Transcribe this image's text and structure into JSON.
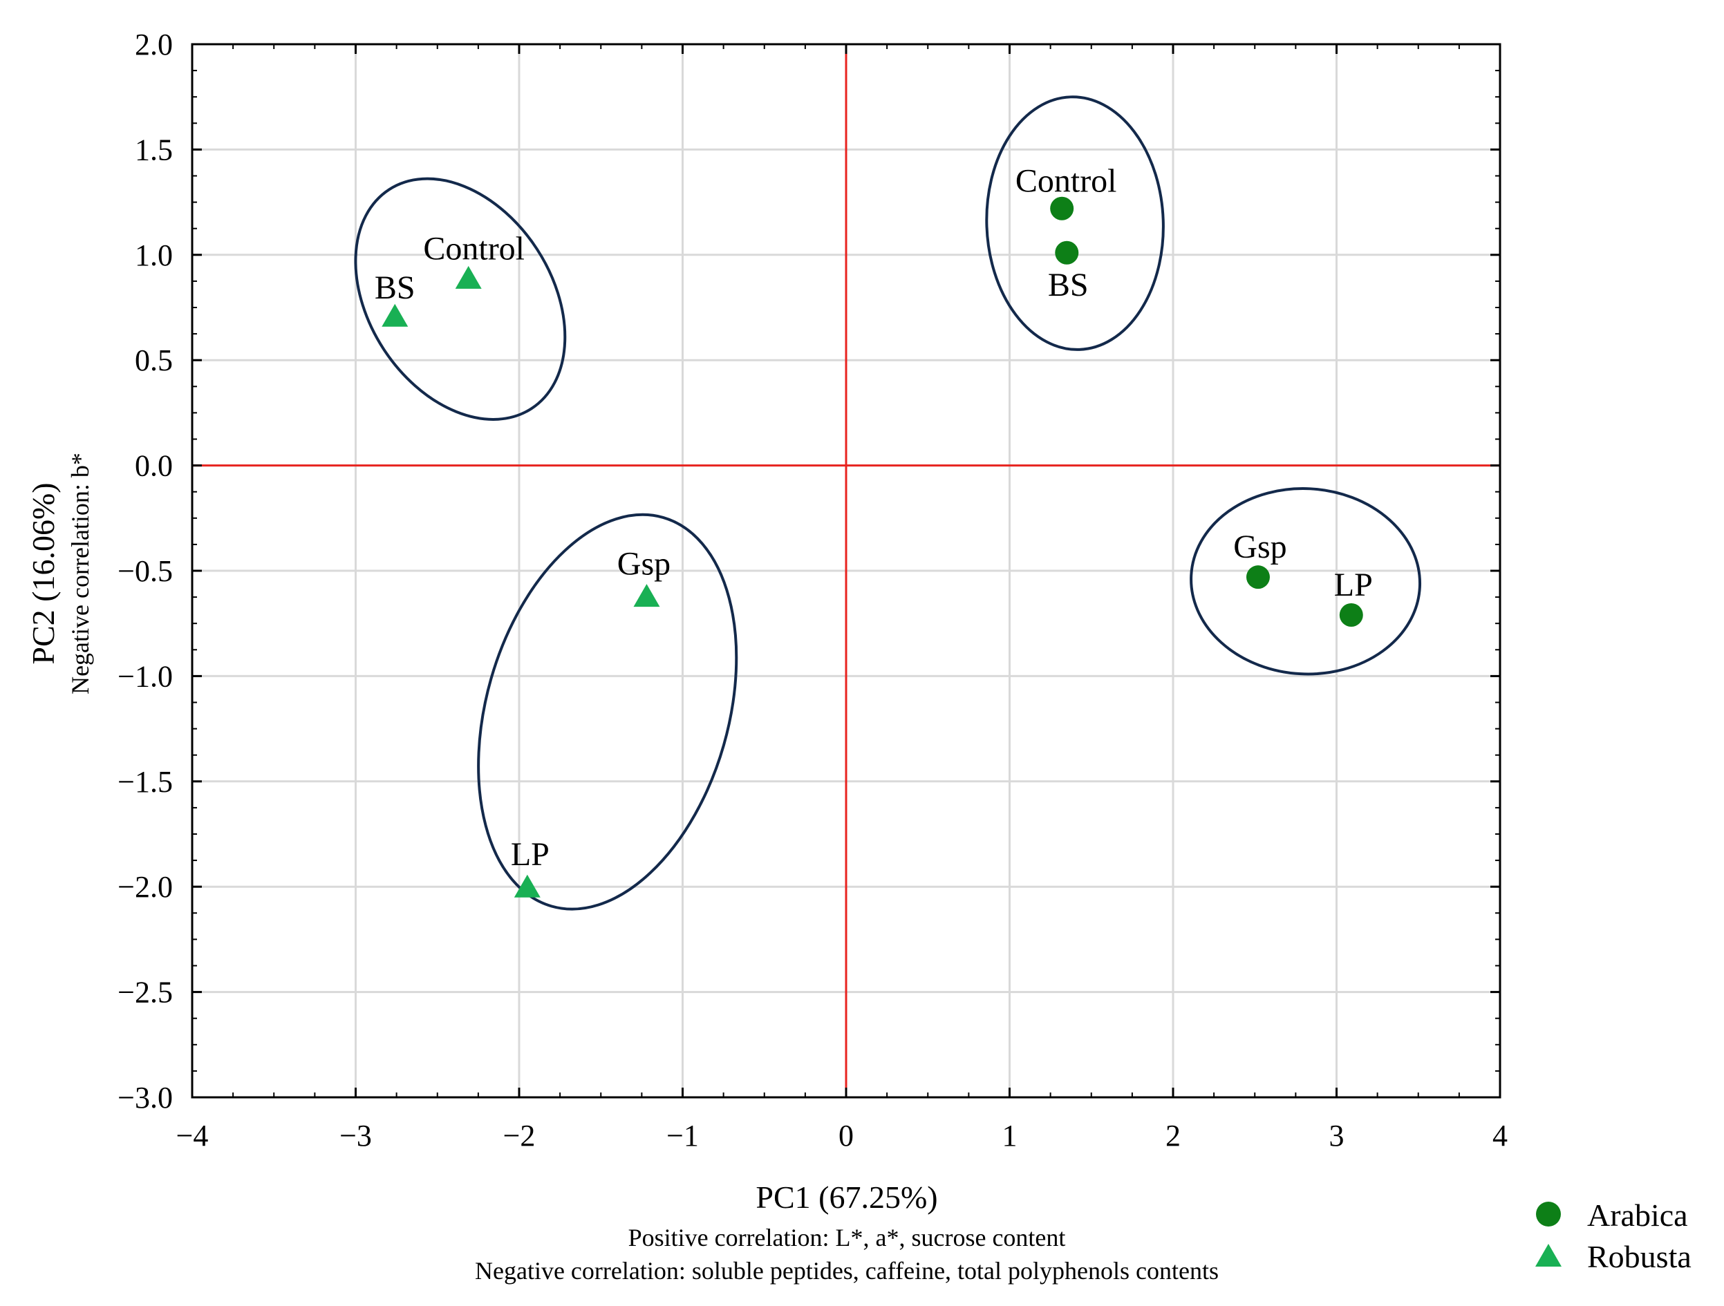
{
  "chart_data": {
    "type": "scatter",
    "title": "",
    "xlabel": "PC1 (67.25%)",
    "xlabel_sub": [
      "Positive correlation: L*, a*, sucrose content",
      "Negative correlation: soluble peptides, caffeine, total polyphenols contents"
    ],
    "ylabel": "PC2 (16.06%)",
    "ylabel_sub": "Negative correlation: b*",
    "xlim": [
      -4,
      4
    ],
    "ylim": [
      -3.0,
      2.0
    ],
    "xticks": [
      -4,
      -3,
      -2,
      -1,
      0,
      1,
      2,
      3,
      4
    ],
    "xtick_labels": [
      "−4",
      "−3",
      "−2",
      "−1",
      "0",
      "1",
      "2",
      "3",
      "4"
    ],
    "yticks": [
      2.0,
      1.5,
      1.0,
      0.5,
      0.0,
      -0.5,
      -1.0,
      -1.5,
      -2.0,
      -2.5,
      -3.0
    ],
    "ytick_labels": [
      "2.0",
      "1.5",
      "1.0",
      "0.5",
      "0.0",
      "−0.5",
      "−1.0",
      "−1.5",
      "−2.0",
      "−2.5",
      "−3.0"
    ],
    "grid": true,
    "reference_lines": {
      "x": 0,
      "y": 0,
      "color": "#e8231f"
    },
    "legend_position": "bottom-right, outside plot",
    "series": [
      {
        "name": "Arabica",
        "marker": "circle",
        "color": "#0d7f17",
        "points": [
          {
            "label": "Control",
            "x": 1.32,
            "y": 1.22
          },
          {
            "label": "BS",
            "x": 1.35,
            "y": 1.01
          },
          {
            "label": "Gsp",
            "x": 2.52,
            "y": -0.53
          },
          {
            "label": "LP",
            "x": 3.09,
            "y": -0.71
          }
        ]
      },
      {
        "name": "Robusta",
        "marker": "triangle",
        "color": "#19b054",
        "points": [
          {
            "label": "Control",
            "x": -2.31,
            "y": 0.88
          },
          {
            "label": "BS",
            "x": -2.76,
            "y": 0.7
          },
          {
            "label": "Gsp",
            "x": -1.22,
            "y": -0.63
          },
          {
            "label": "LP",
            "x": -1.95,
            "y": -2.01
          }
        ]
      }
    ],
    "ellipses": [
      {
        "group": "Robusta Control/BS",
        "cx": -2.36,
        "cy": 0.79,
        "rx": 0.56,
        "ry": 0.62,
        "angle_deg": -33
      },
      {
        "group": "Arabica Control/BS",
        "cx": 1.4,
        "cy": 1.15,
        "rx": 0.54,
        "ry": 0.6,
        "angle_deg": -2
      },
      {
        "group": "Robusta Gsp/LP",
        "cx": -1.46,
        "cy": -1.17,
        "rx": 0.74,
        "ry": 0.96,
        "angle_deg": 16
      },
      {
        "group": "Arabica Gsp/LP",
        "cx": 2.81,
        "cy": -0.55,
        "rx": 0.7,
        "ry": 0.44,
        "angle_deg": 3
      }
    ],
    "ellipse_color": "#13294b"
  }
}
